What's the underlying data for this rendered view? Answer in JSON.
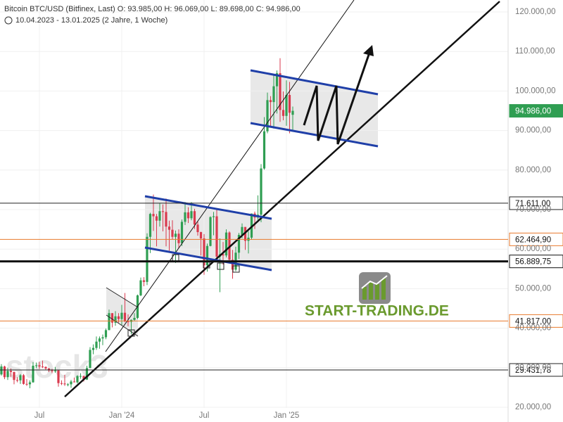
{
  "chart_data": {
    "type": "candlestick",
    "title": "Bitcoin BTC/USD (Bitfinex, Last)  O: 93.985,00  H: 96.069,00  L: 89.698,00  C: 94.986,00",
    "subtitle": "10.04.2023 - 13.01.2025  (2 Jahre, 1 Woche)",
    "watermark": "START-TRADING.DE",
    "watermark_faint": "stock3",
    "up_color": "#2f9e52",
    "down_color": "#d93a4e",
    "open": [
      28300,
      30300,
      27600,
      29200,
      28900,
      26900,
      26800,
      28100,
      25900,
      25800,
      26300,
      30500,
      30600,
      30300,
      30200,
      29800,
      29300,
      29100,
      29300,
      26100,
      26000,
      25800,
      25800,
      26500,
      26300,
      27900,
      27900,
      27000,
      29900,
      34500,
      35000,
      36600,
      37400,
      37700,
      39500,
      43800,
      41400,
      43000,
      42300,
      43900,
      41700,
      41600,
      42100,
      42600,
      48300,
      52100,
      51700,
      63100,
      68900,
      68300,
      67200,
      69600,
      69400,
      65700,
      64900,
      63100,
      63900,
      61500,
      66900,
      69300,
      67800,
      69600,
      66200,
      64300,
      62700,
      55900,
      60800,
      68100,
      68300,
      58100,
      58700,
      58400,
      64200,
      57300,
      54800,
      59100,
      63600,
      65600,
      62100,
      62900,
      69000,
      68000,
      68700,
      80400,
      89800,
      97700,
      97200,
      101200,
      104500,
      95200,
      93700,
      99000,
      93985
    ],
    "high": [
      30900,
      30500,
      30000,
      29800,
      29000,
      27600,
      28400,
      28400,
      27100,
      26800,
      31400,
      31300,
      31500,
      31800,
      30300,
      29900,
      29700,
      30200,
      29400,
      26800,
      28200,
      26100,
      26900,
      27500,
      28100,
      28600,
      28000,
      30500,
      35200,
      35900,
      37900,
      37900,
      38400,
      39900,
      44700,
      43800,
      44300,
      43800,
      45900,
      48900,
      43500,
      42200,
      43800,
      48500,
      52800,
      52900,
      64000,
      69200,
      73800,
      68900,
      71700,
      71300,
      72800,
      67200,
      67300,
      64700,
      65000,
      67500,
      71900,
      70600,
      71900,
      70200,
      67000,
      64400,
      63800,
      61400,
      68300,
      69400,
      70000,
      62700,
      61800,
      65000,
      64500,
      59800,
      60600,
      64100,
      66500,
      65600,
      64500,
      69000,
      69500,
      73600,
      81500,
      93400,
      99600,
      98700,
      104000,
      105200,
      108300,
      99900,
      102700,
      102300,
      96069
    ],
    "low": [
      28000,
      27100,
      26900,
      27700,
      25800,
      26300,
      25900,
      25700,
      25400,
      24800,
      26200,
      29900,
      29700,
      29900,
      29500,
      28900,
      28600,
      28700,
      25200,
      25600,
      25400,
      25300,
      24900,
      26300,
      26000,
      27200,
      26500,
      26900,
      29900,
      33400,
      34500,
      34800,
      35700,
      37200,
      39500,
      40200,
      40600,
      41400,
      40800,
      41500,
      40500,
      38500,
      41900,
      42300,
      48100,
      50600,
      50900,
      59000,
      64600,
      60700,
      65700,
      64500,
      60700,
      59600,
      62500,
      56500,
      60200,
      60800,
      66100,
      66600,
      67300,
      65100,
      63400,
      58400,
      53500,
      54300,
      60700,
      63500,
      57100,
      49100,
      56100,
      57900,
      57200,
      52500,
      54400,
      57500,
      62700,
      59800,
      58900,
      62400,
      65100,
      67400,
      66800,
      80100,
      89300,
      90800,
      90500,
      94300,
      92200,
      92600,
      91200,
      89300,
      89698
    ],
    "close": [
      30300,
      27600,
      29200,
      28900,
      26900,
      26800,
      28100,
      25900,
      25800,
      26300,
      30500,
      30600,
      30300,
      30200,
      29800,
      29300,
      29100,
      29300,
      26100,
      26000,
      25800,
      25800,
      26500,
      26300,
      27900,
      27900,
      27000,
      29900,
      34500,
      35000,
      36600,
      37400,
      37700,
      39500,
      43800,
      41400,
      43000,
      42300,
      43900,
      41700,
      41600,
      42100,
      42600,
      48300,
      52100,
      51700,
      63100,
      68900,
      68300,
      67200,
      69600,
      69400,
      65700,
      64900,
      63100,
      63900,
      61500,
      66900,
      69300,
      67800,
      69600,
      66200,
      64300,
      62700,
      55900,
      60800,
      68100,
      68300,
      58100,
      58700,
      58400,
      64200,
      57300,
      54800,
      59100,
      63600,
      65600,
      62100,
      62900,
      69000,
      68000,
      68700,
      80400,
      89800,
      97700,
      97200,
      101200,
      104500,
      95200,
      93700,
      99000,
      94500,
      94986
    ],
    "xlim": [
      -0.44,
      160
    ],
    "xticks": [
      {
        "value": 12,
        "label": "Jul"
      },
      {
        "value": 38,
        "label": "Jan '24"
      },
      {
        "value": 64,
        "label": "Jul"
      },
      {
        "value": 90,
        "label": "Jan '25"
      }
    ],
    "ylim": [
      16260,
      123025
    ],
    "yticks": [
      {
        "value": 20000,
        "label": "20.000,00"
      },
      {
        "value": 30000,
        "label": "30.000,00"
      },
      {
        "value": 40000,
        "label": "40.000,00"
      },
      {
        "value": 50000,
        "label": "50.000,00"
      },
      {
        "value": 60000,
        "label": "60.000,00"
      },
      {
        "value": 70000,
        "label": "70.000,00"
      },
      {
        "value": 80000,
        "label": "80.000,00"
      },
      {
        "value": 90000,
        "label": "90.000,00"
      },
      {
        "value": 100000,
        "label": "100.000,00"
      },
      {
        "value": 110000,
        "label": "110.000,00"
      },
      {
        "value": 120000,
        "label": "120.000,00"
      }
    ],
    "grid": true,
    "levels": [
      {
        "value": 94986,
        "label": "94.986,00",
        "color": "#2f9e52",
        "line": false
      },
      {
        "value": 71611,
        "label": "71.611,00",
        "color": "#222222",
        "line": true
      },
      {
        "value": 62464.9,
        "label": "62.464,90",
        "color": "#e8792b",
        "line": true
      },
      {
        "value": 56889.75,
        "label": "56.889,75",
        "color": "#111111",
        "line": true
      },
      {
        "value": 41817,
        "label": "41.817,00",
        "color": "#e8792b",
        "line": true
      },
      {
        "value": 29431.78,
        "label": "29.431,78",
        "color": "#222222",
        "line": true
      }
    ]
  }
}
